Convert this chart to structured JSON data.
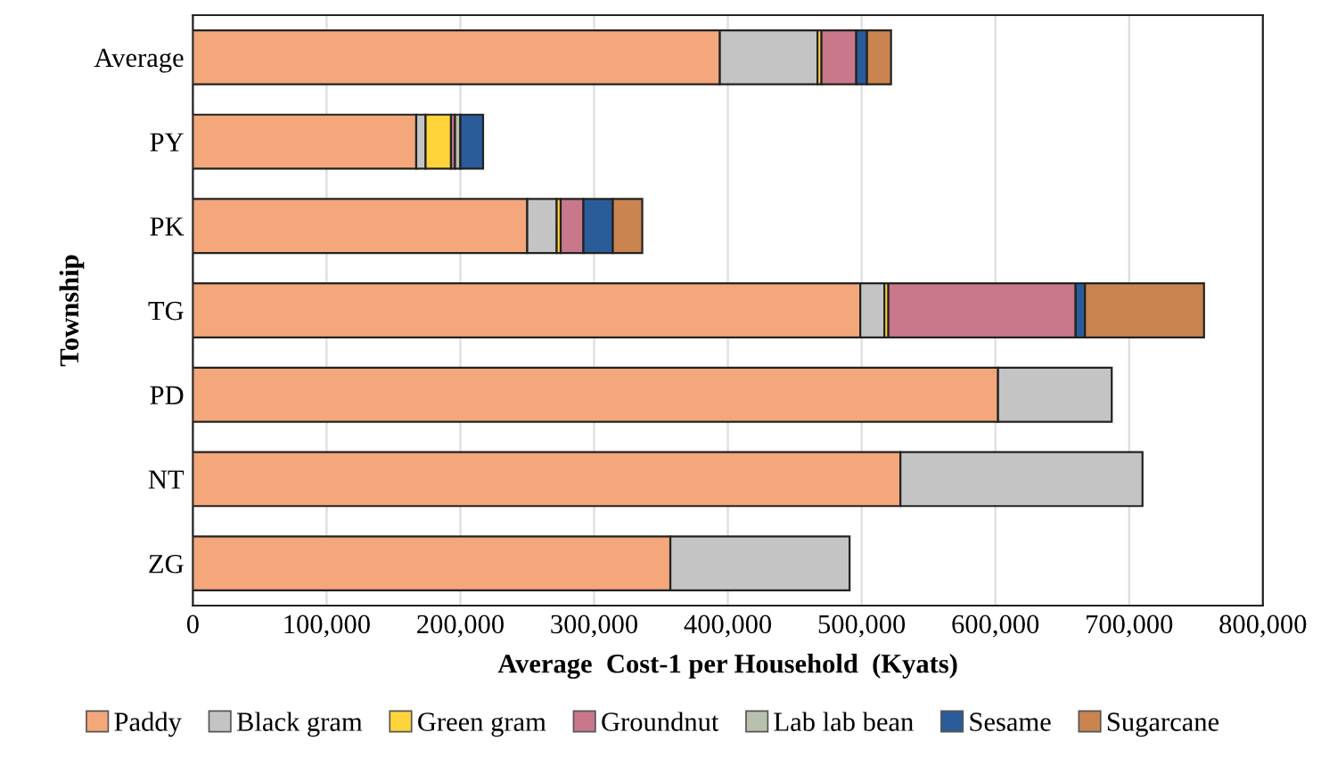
{
  "chart_data": {
    "type": "bar",
    "orientation": "horizontal",
    "stacked": true,
    "xlabel": "Average  Cost-1 per Household  (Kyats)",
    "ylabel": "Township",
    "categories": [
      "Average",
      "PY",
      "PK",
      "TG",
      "PD",
      "NT",
      "ZG"
    ],
    "series": [
      {
        "name": "Paddy",
        "color": "#f4a77a",
        "values": [
          394000,
          167000,
          250000,
          499000,
          602000,
          529000,
          357000
        ]
      },
      {
        "name": "Black gram",
        "color": "#c4c4c4",
        "values": [
          73000,
          7000,
          22000,
          18000,
          85000,
          181000,
          134000
        ]
      },
      {
        "name": "Green gram",
        "color": "#ffd43b",
        "values": [
          3000,
          19000,
          3000,
          3000,
          null,
          null,
          null
        ]
      },
      {
        "name": "Groundnut",
        "color": "#c9778a",
        "values": [
          26000,
          3000,
          17000,
          140000,
          null,
          null,
          null
        ]
      },
      {
        "name": "Lab lab bean",
        "color": "#b9c0ad",
        "values": [
          null,
          4000,
          null,
          null,
          null,
          null,
          null
        ]
      },
      {
        "name": "Sesame",
        "color": "#2a5c9a",
        "values": [
          8000,
          17000,
          22000,
          7000,
          null,
          null,
          null
        ]
      },
      {
        "name": "Sugarcane",
        "color": "#c98450",
        "values": [
          18000,
          null,
          22000,
          89000,
          null,
          null,
          null
        ]
      }
    ],
    "xlim": [
      0,
      800000
    ],
    "xticks": [
      {
        "value": 0,
        "label": "0"
      },
      {
        "value": 100000,
        "label": "100,000"
      },
      {
        "value": 200000,
        "label": "200,000"
      },
      {
        "value": 300000,
        "label": "300,000"
      },
      {
        "value": 400000,
        "label": "400,000"
      },
      {
        "value": 500000,
        "label": "500,000"
      },
      {
        "value": 600000,
        "label": "600,000"
      },
      {
        "value": 700000,
        "label": "700,000"
      },
      {
        "value": 800000,
        "label": "800,000"
      }
    ],
    "grid": "x",
    "legend": "bottom"
  }
}
